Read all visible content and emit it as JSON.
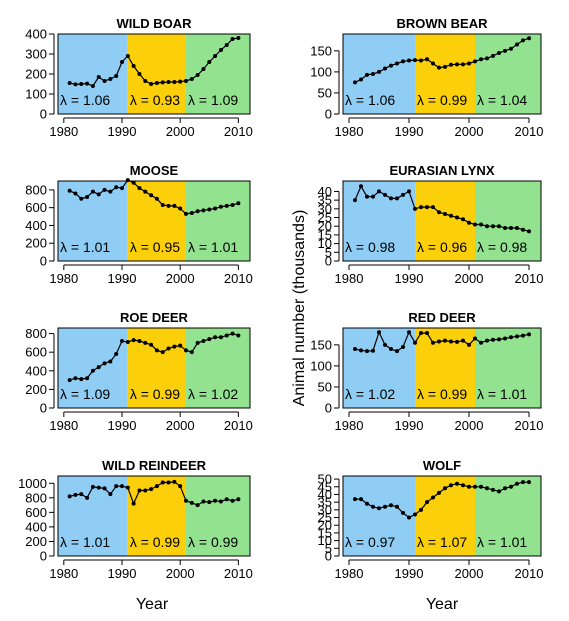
{
  "colors": {
    "period1": "#8fcdf5",
    "period2": "#fbcf0a",
    "period3": "#92e28f",
    "line": "#000000"
  },
  "shared_labels": {
    "xlabel": "Year",
    "ylabel": "Animal number  (thousands)"
  },
  "chart_data": [
    {
      "type": "line",
      "title": "WILD BOAR",
      "xlim": [
        1979,
        2012
      ],
      "ylim": [
        0,
        400
      ],
      "yticks": [
        0,
        100,
        200,
        300,
        400
      ],
      "xticks": [
        1980,
        1990,
        2000,
        2010
      ],
      "periods": [
        1979,
        1991,
        2001,
        2012
      ],
      "lambdas": [
        "λ = 1.06",
        "λ = 0.93",
        "λ = 1.09"
      ],
      "x": [
        1981,
        1982,
        1983,
        1984,
        1985,
        1986,
        1987,
        1988,
        1989,
        1990,
        1991,
        1992,
        1993,
        1994,
        1995,
        1996,
        1997,
        1998,
        1999,
        2000,
        2001,
        2002,
        2003,
        2004,
        2005,
        2006,
        2007,
        2008,
        2009,
        2010
      ],
      "y": [
        155,
        148,
        150,
        152,
        140,
        185,
        165,
        175,
        190,
        260,
        290,
        240,
        200,
        165,
        150,
        155,
        158,
        160,
        160,
        162,
        165,
        175,
        195,
        225,
        260,
        290,
        320,
        345,
        375,
        380
      ]
    },
    {
      "type": "line",
      "title": "BROWN BEAR",
      "xlim": [
        1979,
        2012
      ],
      "ylim": [
        0,
        190
      ],
      "yticks": [
        0,
        50,
        100,
        150
      ],
      "xticks": [
        1980,
        1990,
        2000,
        2010
      ],
      "periods": [
        1979,
        1991,
        2001,
        2012
      ],
      "lambdas": [
        "λ = 1.06",
        "λ = 0.99",
        "λ = 1.04"
      ],
      "x": [
        1981,
        1982,
        1983,
        1984,
        1985,
        1986,
        1987,
        1988,
        1989,
        1990,
        1991,
        1992,
        1993,
        1994,
        1995,
        1996,
        1997,
        1998,
        1999,
        2000,
        2001,
        2002,
        2003,
        2004,
        2005,
        2006,
        2007,
        2008,
        2009,
        2010
      ],
      "y": [
        75,
        82,
        93,
        95,
        100,
        108,
        115,
        120,
        125,
        127,
        128,
        127,
        130,
        120,
        110,
        112,
        117,
        118,
        118,
        120,
        125,
        130,
        132,
        138,
        145,
        150,
        155,
        165,
        175,
        180
      ]
    },
    {
      "type": "line",
      "title": "MOOSE",
      "xlim": [
        1979,
        2012
      ],
      "ylim": [
        0,
        900
      ],
      "yticks": [
        0,
        200,
        400,
        600,
        800
      ],
      "xticks": [
        1980,
        1990,
        2000,
        2010
      ],
      "periods": [
        1979,
        1991,
        2001,
        2012
      ],
      "lambdas": [
        "λ = 1.01",
        "λ = 0.95",
        "λ = 1.01"
      ],
      "x": [
        1981,
        1982,
        1983,
        1984,
        1985,
        1986,
        1987,
        1988,
        1989,
        1990,
        1991,
        1992,
        1993,
        1994,
        1995,
        1996,
        1997,
        1998,
        1999,
        2000,
        2001,
        2002,
        2003,
        2004,
        2005,
        2006,
        2007,
        2008,
        2009,
        2010
      ],
      "y": [
        790,
        760,
        700,
        720,
        780,
        750,
        800,
        780,
        830,
        820,
        910,
        880,
        820,
        780,
        740,
        700,
        630,
        620,
        620,
        590,
        530,
        540,
        560,
        570,
        580,
        590,
        610,
        620,
        630,
        650
      ]
    },
    {
      "type": "line",
      "title": "EURASIAN LYNX",
      "xlim": [
        1979,
        2012
      ],
      "ylim": [
        0,
        46
      ],
      "yticks": [
        0,
        5,
        10,
        15,
        20,
        25,
        30,
        35,
        40
      ],
      "xticks": [
        1980,
        1990,
        2000,
        2010
      ],
      "periods": [
        1979,
        1991,
        2001,
        2012
      ],
      "lambdas": [
        "λ = 0.98",
        "λ = 0.96",
        "λ = 0.98"
      ],
      "x": [
        1981,
        1982,
        1983,
        1984,
        1985,
        1986,
        1987,
        1988,
        1989,
        1990,
        1991,
        1992,
        1993,
        1994,
        1995,
        1996,
        1997,
        1998,
        1999,
        2000,
        2001,
        2002,
        2003,
        2004,
        2005,
        2006,
        2007,
        2008,
        2009,
        2010
      ],
      "y": [
        35,
        43,
        37,
        37,
        40,
        38,
        36,
        36,
        38,
        40,
        30,
        31,
        31,
        31,
        28,
        27,
        26,
        25,
        24,
        22,
        21,
        21,
        20,
        20,
        20,
        19,
        19,
        19,
        18,
        17
      ]
    },
    {
      "type": "line",
      "title": "ROE DEER",
      "xlim": [
        1979,
        2012
      ],
      "ylim": [
        0,
        860
      ],
      "yticks": [
        0,
        200,
        400,
        600,
        800
      ],
      "xticks": [
        1980,
        1990,
        2000,
        2010
      ],
      "periods": [
        1979,
        1991,
        2001,
        2012
      ],
      "lambdas": [
        "λ = 1.09",
        "λ = 0.99",
        "λ = 1.02"
      ],
      "x": [
        1981,
        1982,
        1983,
        1984,
        1985,
        1986,
        1987,
        1988,
        1989,
        1990,
        1991,
        1992,
        1993,
        1994,
        1995,
        1996,
        1997,
        1998,
        1999,
        2000,
        2001,
        2002,
        2003,
        2004,
        2005,
        2006,
        2007,
        2008,
        2009,
        2010
      ],
      "y": [
        300,
        320,
        310,
        320,
        400,
        440,
        480,
        500,
        580,
        720,
        710,
        730,
        720,
        700,
        680,
        620,
        600,
        640,
        660,
        670,
        620,
        600,
        700,
        720,
        740,
        760,
        760,
        780,
        800,
        780
      ]
    },
    {
      "type": "line",
      "title": "RED DEER",
      "xlim": [
        1979,
        2012
      ],
      "ylim": [
        0,
        190
      ],
      "yticks": [
        0,
        50,
        100,
        150
      ],
      "xticks": [
        1980,
        1990,
        2000,
        2010
      ],
      "periods": [
        1979,
        1991,
        2001,
        2012
      ],
      "lambdas": [
        "λ = 1.02",
        "λ = 0.99",
        "λ = 1.01"
      ],
      "x": [
        1981,
        1982,
        1983,
        1984,
        1985,
        1986,
        1987,
        1988,
        1989,
        1990,
        1991,
        1992,
        1993,
        1994,
        1995,
        1996,
        1997,
        1998,
        1999,
        2000,
        2001,
        2002,
        2003,
        2004,
        2005,
        2006,
        2007,
        2008,
        2009,
        2010
      ],
      "y": [
        140,
        137,
        135,
        136,
        180,
        150,
        140,
        135,
        145,
        180,
        155,
        178,
        178,
        155,
        158,
        160,
        158,
        157,
        160,
        150,
        165,
        155,
        160,
        162,
        163,
        165,
        168,
        170,
        172,
        175
      ]
    },
    {
      "type": "line",
      "title": "WILD REINDEER",
      "xlim": [
        1979,
        2012
      ],
      "ylim": [
        0,
        1100
      ],
      "yticks": [
        0,
        200,
        400,
        600,
        800,
        1000
      ],
      "xticks": [
        1980,
        1990,
        2000,
        2010
      ],
      "periods": [
        1979,
        1991,
        2001,
        2012
      ],
      "lambdas": [
        "λ = 1.01",
        "λ = 0.99",
        "λ = 0.99"
      ],
      "x": [
        1981,
        1982,
        1983,
        1984,
        1985,
        1986,
        1987,
        1988,
        1989,
        1990,
        1991,
        1992,
        1993,
        1994,
        1995,
        1996,
        1997,
        1998,
        1999,
        2000,
        2001,
        2002,
        2003,
        2004,
        2005,
        2006,
        2007,
        2008,
        2009,
        2010
      ],
      "y": [
        820,
        840,
        850,
        800,
        950,
        940,
        930,
        850,
        960,
        960,
        940,
        720,
        900,
        900,
        920,
        960,
        1010,
        1010,
        1020,
        960,
        760,
        730,
        700,
        750,
        740,
        760,
        750,
        780,
        760,
        780
      ]
    },
    {
      "type": "line",
      "title": "WOLF",
      "xlim": [
        1979,
        2012
      ],
      "ylim": [
        0,
        52
      ],
      "yticks": [
        0,
        5,
        10,
        15,
        20,
        25,
        30,
        35,
        40,
        45,
        50
      ],
      "xticks": [
        1980,
        1990,
        2000,
        2010
      ],
      "periods": [
        1979,
        1991,
        2001,
        2012
      ],
      "lambdas": [
        "λ = 0.97",
        "λ = 1.07",
        "λ = 1.01"
      ],
      "x": [
        1981,
        1982,
        1983,
        1984,
        1985,
        1986,
        1987,
        1988,
        1989,
        1990,
        1991,
        1992,
        1993,
        1994,
        1995,
        1996,
        1997,
        1998,
        1999,
        2000,
        2001,
        2002,
        2003,
        2004,
        2005,
        2006,
        2007,
        2008,
        2009,
        2010
      ],
      "y": [
        37,
        37,
        34,
        32,
        31,
        32,
        33,
        32,
        28,
        25,
        27,
        30,
        35,
        38,
        41,
        44,
        46,
        47,
        46,
        45,
        45,
        45,
        44,
        43,
        42,
        44,
        45,
        47,
        48,
        48
      ]
    }
  ]
}
